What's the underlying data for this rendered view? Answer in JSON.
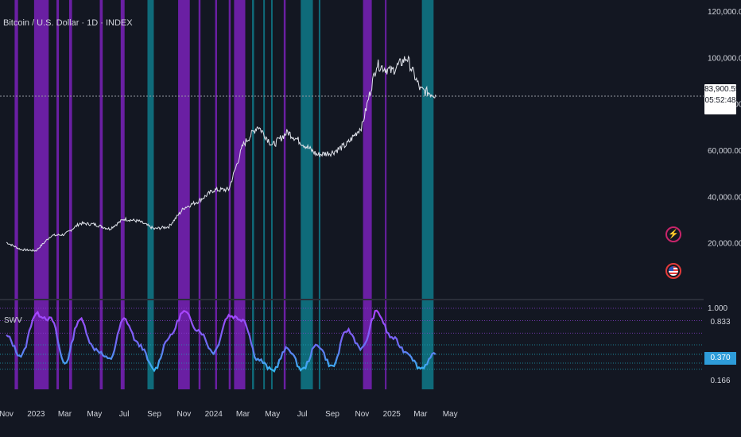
{
  "chart_data": [
    {
      "type": "line",
      "title": "Bitcoin / U.S. Dollar · 1D · INDEX",
      "series": [
        {
          "x": [
            "2022-11-01",
            "2022-12-01",
            "2023-01-01",
            "2023-02-01",
            "2023-03-01",
            "2023-04-01",
            "2023-05-01",
            "2023-06-01",
            "2023-07-01",
            "2023-08-01",
            "2023-09-01",
            "2023-10-01",
            "2023-11-01",
            "2023-12-01",
            "2024-01-01",
            "2024-02-01",
            "2024-03-01",
            "2024-04-01",
            "2024-05-01",
            "2024-06-01",
            "2024-07-01",
            "2024-08-01",
            "2024-09-01",
            "2024-10-01",
            "2024-11-01",
            "2024-12-01",
            "2025-01-01",
            "2025-02-01",
            "2025-03-01",
            "2025-04-01"
          ],
          "values": [
            20200,
            17100,
            16600,
            23100,
            23600,
            28400,
            28000,
            26000,
            30300,
            29300,
            26000,
            27000,
            35100,
            38000,
            42800,
            43000,
            62000,
            70500,
            62000,
            67800,
            63000,
            58000,
            59000,
            62500,
            70500,
            97000,
            94000,
            100000,
            86000,
            83900
          ]
        }
      ],
      "ylim": [
        0,
        120000
      ],
      "yticks": [
        "20,000.00",
        "40,000.00",
        "60,000.00",
        "80,000.00",
        "100,000.00",
        "120,000.00"
      ],
      "last_price": "83,900.55",
      "countdown": "05:52:48",
      "grid": false
    },
    {
      "type": "line",
      "title": "SWV",
      "series": [
        {
          "x": [
            "2022-11-01",
            "2022-12-01",
            "2023-01-01",
            "2023-02-01",
            "2023-03-01",
            "2023-04-01",
            "2023-05-01",
            "2023-06-01",
            "2023-07-01",
            "2023-08-01",
            "2023-09-01",
            "2023-10-01",
            "2023-11-01",
            "2023-12-01",
            "2024-01-01",
            "2024-02-01",
            "2024-03-01",
            "2024-04-01",
            "2024-05-01",
            "2024-06-01",
            "2024-07-01",
            "2024-08-01",
            "2024-09-01",
            "2024-10-01",
            "2024-11-01",
            "2024-12-01",
            "2025-01-01",
            "2025-02-01",
            "2025-03-01",
            "2025-04-01"
          ],
          "values": [
            0.62,
            0.35,
            0.92,
            0.85,
            0.25,
            0.85,
            0.45,
            0.3,
            0.85,
            0.5,
            0.16,
            0.6,
            0.95,
            0.7,
            0.4,
            0.9,
            0.85,
            0.3,
            0.15,
            0.45,
            0.16,
            0.5,
            0.2,
            0.7,
            0.45,
            0.95,
            0.6,
            0.4,
            0.18,
            0.37
          ]
        }
      ],
      "ylim": [
        0.0,
        1.0
      ],
      "levels": [
        "1.000",
        "0.833",
        "0.370",
        "0.166"
      ],
      "current": "0.370"
    }
  ],
  "x_axis_labels": [
    "Nov",
    "2023",
    "Mar",
    "May",
    "Jul",
    "Sep",
    "Nov",
    "2024",
    "Mar",
    "May",
    "Jul",
    "Sep",
    "Nov",
    "2025",
    "Mar",
    "May"
  ],
  "colors": {
    "background": "#131722",
    "purple_band": "#6a1fa3",
    "teal_band": "#0f6b7a",
    "price_line": "#e0e3eb",
    "osc_high": "#b040ff",
    "osc_low": "#1fd3f0"
  },
  "icons": [
    "lightning-icon",
    "us-flag-icon"
  ]
}
